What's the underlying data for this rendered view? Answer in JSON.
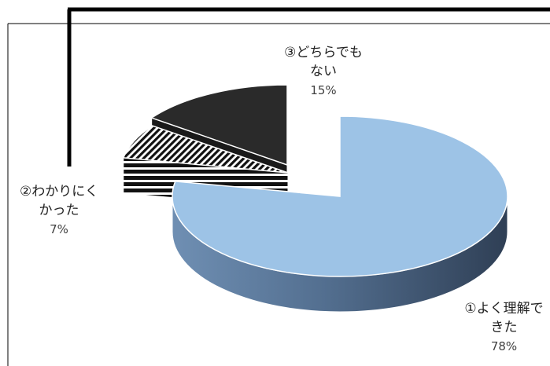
{
  "chart_data": {
    "type": "pie",
    "style": "3d-exploded",
    "title": "",
    "slices": [
      {
        "label": "①よく理解できた",
        "label_lines": [
          "①よく理解で",
          "きた"
        ],
        "value": 78,
        "value_label": "78%",
        "color": "#9dc3e6",
        "pattern": "solid"
      },
      {
        "label": "②わかりにくかった",
        "label_lines": [
          "②わかりにく",
          "かった"
        ],
        "value": 7,
        "value_label": "7%",
        "color": "#1e1e1e",
        "pattern": "diagonal-stripes"
      },
      {
        "label": "③どちらでもない",
        "label_lines": [
          "③どちらでも",
          "ない"
        ],
        "value": 15,
        "value_label": "15%",
        "color": "#2a2a2a",
        "pattern": "solid"
      }
    ]
  }
}
